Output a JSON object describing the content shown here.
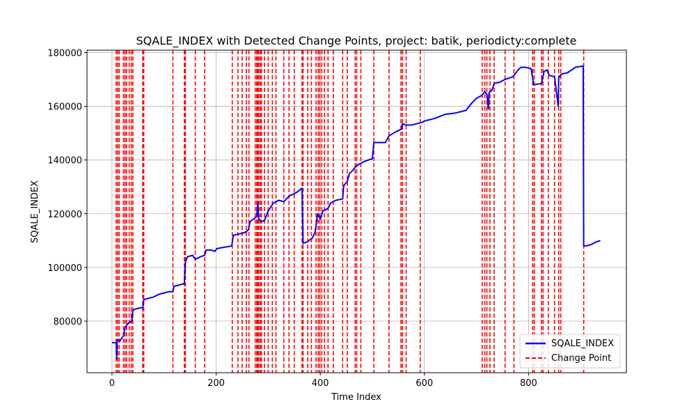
{
  "chart_data": {
    "type": "line",
    "title": "SQALE_INDEX with Detected Change Points, project: batik, periodicty:complete",
    "xlabel": "Time Index",
    "ylabel": "SQALE_INDEX",
    "xlim": [
      -48,
      988
    ],
    "ylim": [
      60800,
      180900
    ],
    "xticks": [
      0,
      200,
      400,
      600,
      800
    ],
    "yticks": [
      80000,
      100000,
      120000,
      140000,
      160000,
      180000
    ],
    "grid": true,
    "legend_position": "lower right",
    "legend": [
      "SQALE_INDEX",
      "Change Point"
    ],
    "colors": {
      "series": "#0000ff",
      "change_point": "#ff0000",
      "grid": "#b0b0b0"
    },
    "series": [
      {
        "name": "SQALE_INDEX",
        "points": [
          [
            0,
            72000
          ],
          [
            8,
            72000
          ],
          [
            9,
            66000
          ],
          [
            10,
            73000
          ],
          [
            13,
            73000
          ],
          [
            15,
            72500
          ],
          [
            18,
            73500
          ],
          [
            22,
            74500
          ],
          [
            25,
            77500
          ],
          [
            28,
            78500
          ],
          [
            33,
            79500
          ],
          [
            38,
            80000
          ],
          [
            40,
            84000
          ],
          [
            45,
            84500
          ],
          [
            55,
            85000
          ],
          [
            59,
            85000
          ],
          [
            61,
            88000
          ],
          [
            70,
            88500
          ],
          [
            80,
            89000
          ],
          [
            90,
            90000
          ],
          [
            100,
            90500
          ],
          [
            110,
            91000
          ],
          [
            117,
            91000
          ],
          [
            119,
            93000
          ],
          [
            130,
            93500
          ],
          [
            139,
            94000
          ],
          [
            141,
            102000
          ],
          [
            145,
            104000
          ],
          [
            155,
            104500
          ],
          [
            160,
            103000
          ],
          [
            170,
            104000
          ],
          [
            178,
            104500
          ],
          [
            181,
            106500
          ],
          [
            190,
            106500
          ],
          [
            198,
            106000
          ],
          [
            201,
            107000
          ],
          [
            215,
            107500
          ],
          [
            230,
            108000
          ],
          [
            233,
            112000
          ],
          [
            245,
            112500
          ],
          [
            255,
            113000
          ],
          [
            262,
            114000
          ],
          [
            265,
            117000
          ],
          [
            275,
            118500
          ],
          [
            278,
            119000
          ],
          [
            280,
            124000
          ],
          [
            282,
            118000
          ],
          [
            287,
            117000
          ],
          [
            293,
            117500
          ],
          [
            300,
            121000
          ],
          [
            310,
            124000
          ],
          [
            320,
            125000
          ],
          [
            330,
            124500
          ],
          [
            340,
            126500
          ],
          [
            355,
            128000
          ],
          [
            365,
            129500
          ],
          [
            367,
            109000
          ],
          [
            375,
            109500
          ],
          [
            385,
            111000
          ],
          [
            390,
            113000
          ],
          [
            395,
            120000
          ],
          [
            400,
            118000
          ],
          [
            405,
            121000
          ],
          [
            415,
            122000
          ],
          [
            420,
            124000
          ],
          [
            430,
            125000
          ],
          [
            443,
            125500
          ],
          [
            445,
            130500
          ],
          [
            452,
            132000
          ],
          [
            456,
            135000
          ],
          [
            462,
            136000
          ],
          [
            468,
            137500
          ],
          [
            475,
            138500
          ],
          [
            485,
            139500
          ],
          [
            500,
            140500
          ],
          [
            503,
            146500
          ],
          [
            525,
            146500
          ],
          [
            532,
            149000
          ],
          [
            545,
            150500
          ],
          [
            556,
            151500
          ],
          [
            558,
            153500
          ],
          [
            565,
            153000
          ],
          [
            575,
            153000
          ],
          [
            595,
            154000
          ],
          [
            600,
            154500
          ],
          [
            620,
            155500
          ],
          [
            640,
            157000
          ],
          [
            660,
            157500
          ],
          [
            680,
            158500
          ],
          [
            690,
            161000
          ],
          [
            700,
            163000
          ],
          [
            710,
            164000
          ],
          [
            716,
            165500
          ],
          [
            720,
            164500
          ],
          [
            723,
            159000
          ],
          [
            724,
            165000
          ],
          [
            730,
            166000
          ],
          [
            734,
            168500
          ],
          [
            745,
            169000
          ],
          [
            755,
            170000
          ],
          [
            770,
            171000
          ],
          [
            780,
            173500
          ],
          [
            785,
            174500
          ],
          [
            795,
            174500
          ],
          [
            805,
            174000
          ],
          [
            810,
            168000
          ],
          [
            825,
            168500
          ],
          [
            830,
            173000
          ],
          [
            835,
            173500
          ],
          [
            840,
            171500
          ],
          [
            850,
            171000
          ],
          [
            857,
            160000
          ],
          [
            858,
            170500
          ],
          [
            863,
            172000
          ],
          [
            875,
            172500
          ],
          [
            890,
            174500
          ],
          [
            905,
            175000
          ],
          [
            906,
            108000
          ],
          [
            910,
            108000
          ],
          [
            920,
            108500
          ],
          [
            930,
            109500
          ],
          [
            938,
            110000
          ]
        ]
      }
    ],
    "change_points": [
      8,
      11,
      14,
      22,
      25,
      28,
      33,
      37,
      40,
      59,
      61,
      117,
      139,
      141,
      160,
      178,
      231,
      242,
      250,
      258,
      263,
      275,
      278,
      280,
      282,
      285,
      287,
      293,
      300,
      308,
      315,
      330,
      340,
      350,
      365,
      367,
      376,
      383,
      392,
      396,
      399,
      403,
      408,
      415,
      425,
      443,
      452,
      467,
      470,
      478,
      503,
      532,
      555,
      558,
      565,
      592,
      711,
      716,
      720,
      726,
      734,
      755,
      772,
      808,
      811,
      825,
      828,
      838,
      850,
      858,
      862,
      906
    ]
  }
}
